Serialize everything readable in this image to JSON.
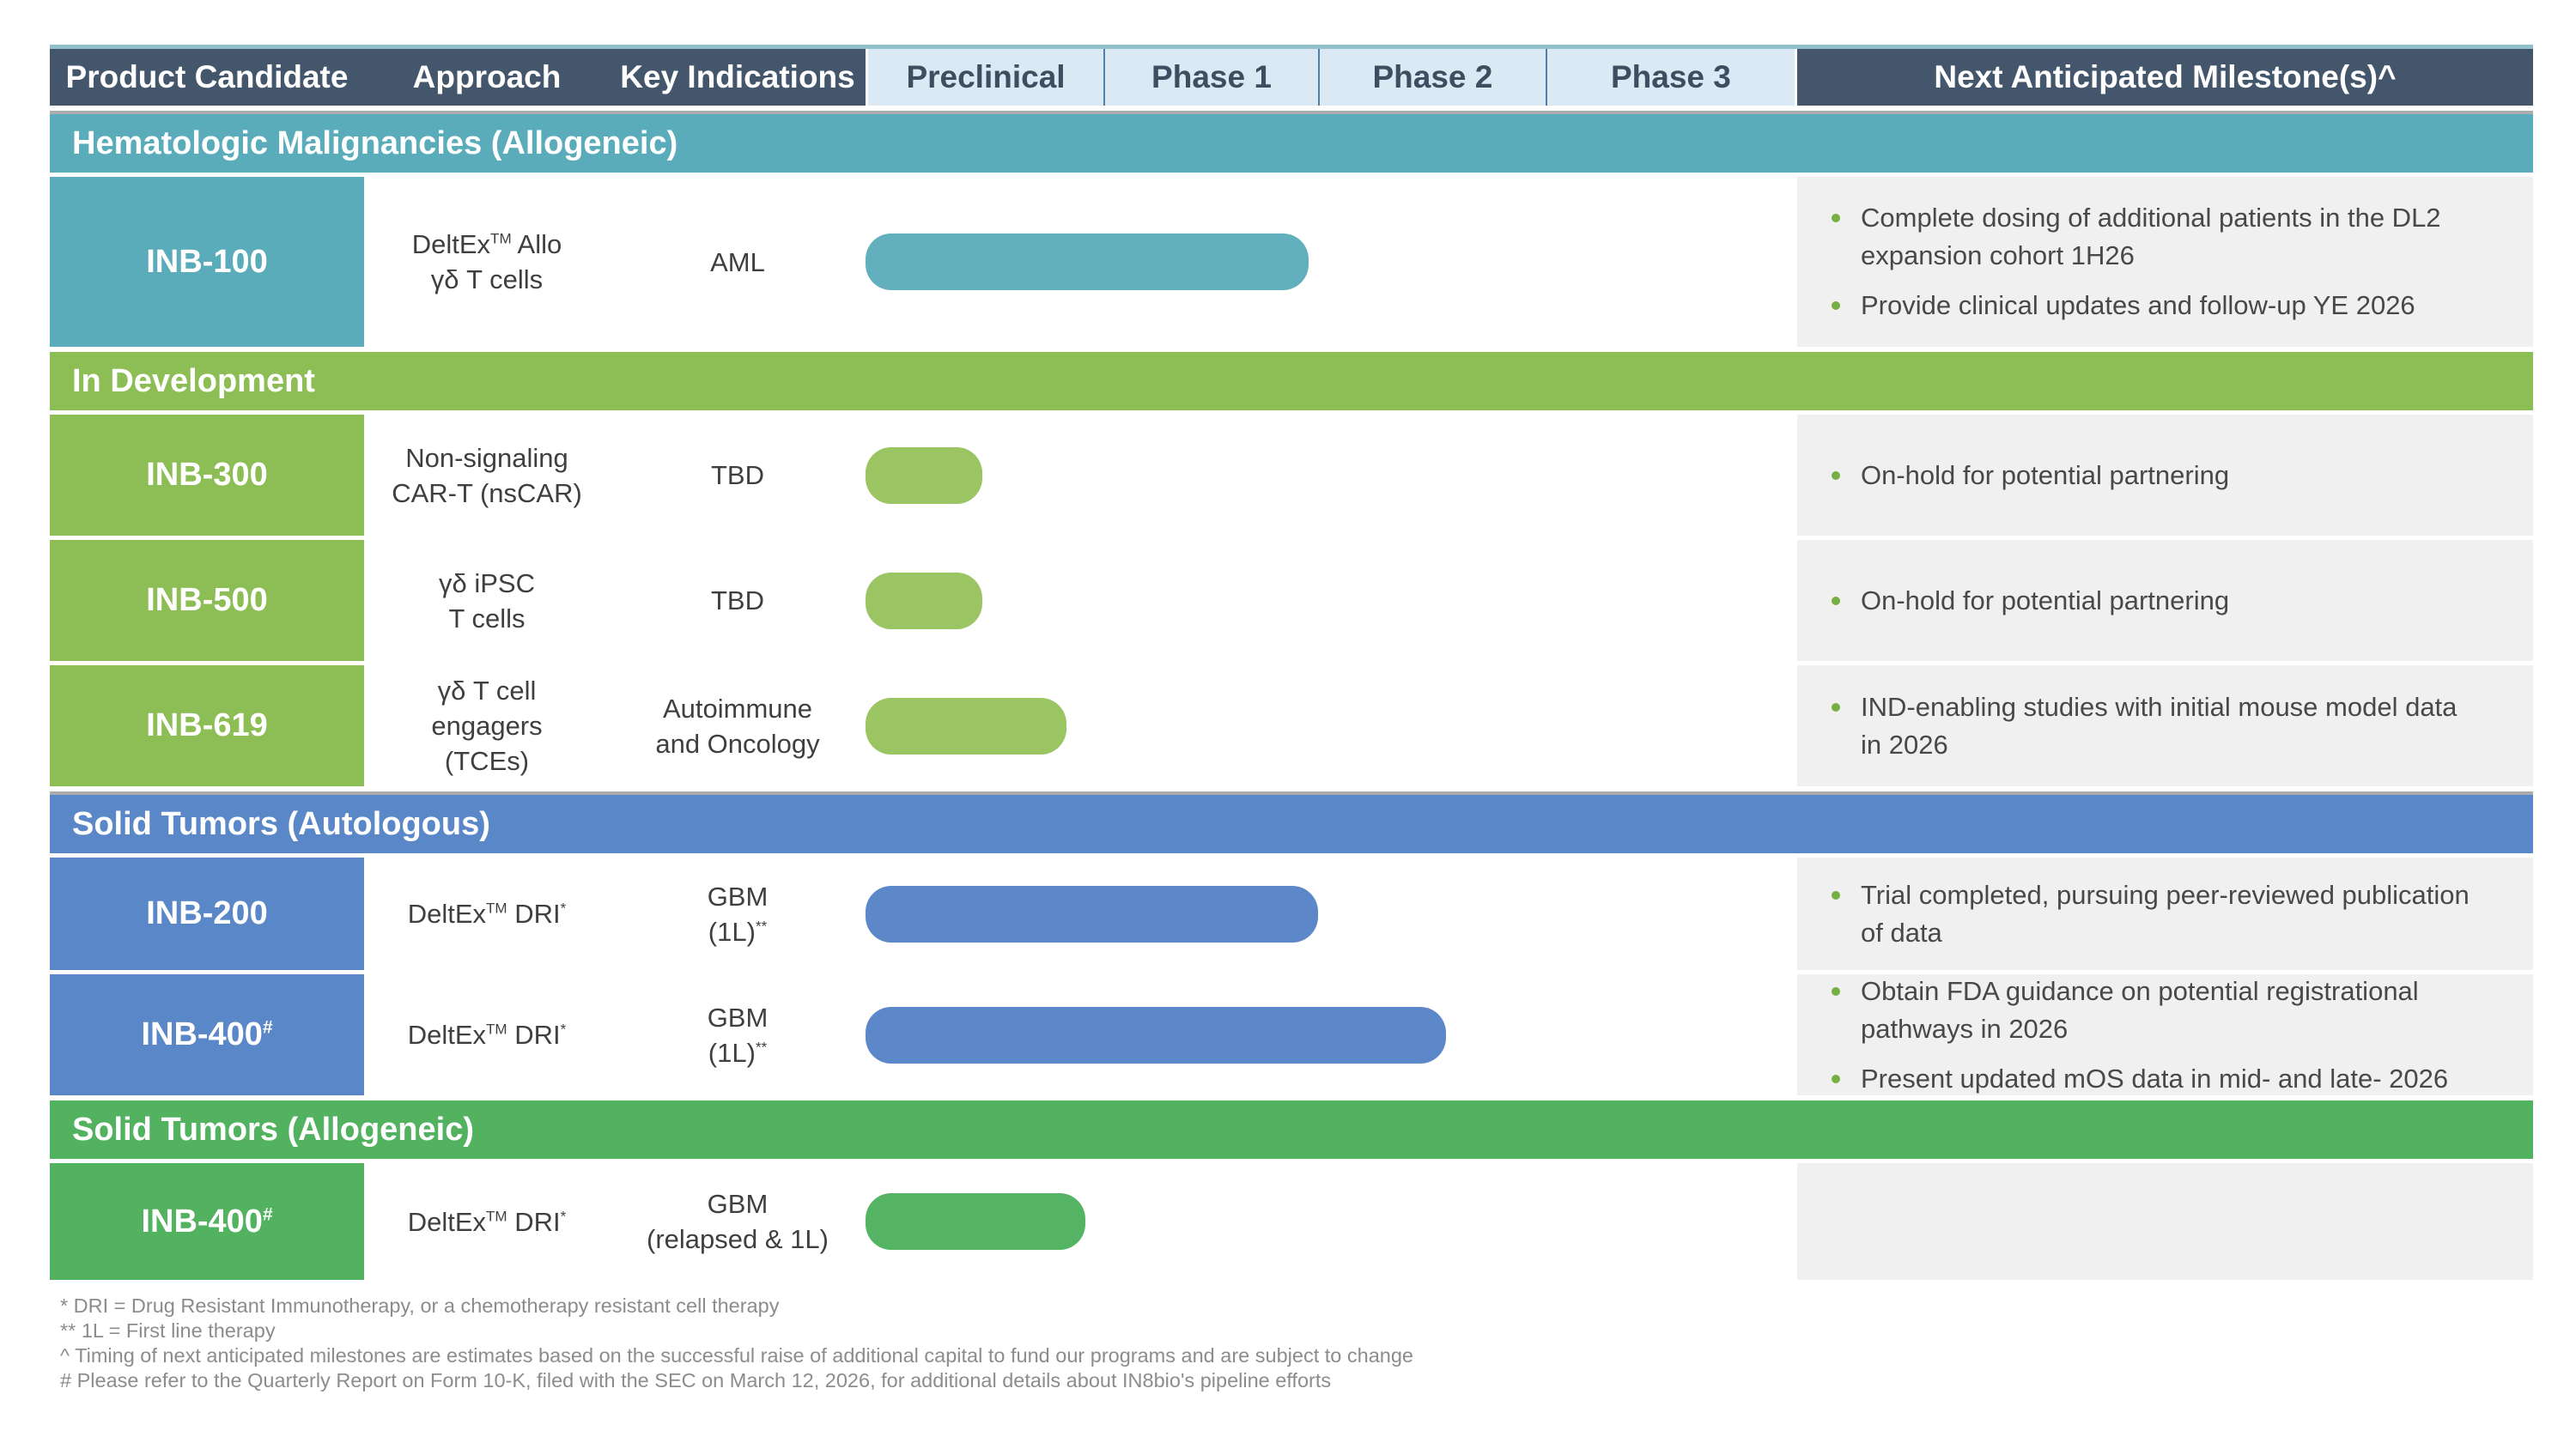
{
  "header": {
    "columns": [
      "Product Candidate",
      "Approach",
      "Key Indications"
    ],
    "phases": [
      "Preclinical",
      "Phase 1",
      "Phase 2",
      "Phase 3"
    ],
    "milestones_label": "Next Anticipated Milestone(s)^"
  },
  "colors": {
    "header_dark": "#44566B",
    "phase_cell_bg": "#DBE9F4",
    "phase_divider": "#4E7FAD",
    "teal": "#5AACBB",
    "teal_bar": "#62AFBD",
    "olive": "#8DBE55",
    "olive_bar": "#9BC463",
    "blue": "#5A87C8",
    "blue_bar": "#5C88C9",
    "green": "#52B25F",
    "green_bar": "#55B464",
    "milestone_panel_bg": "#F1F0F0",
    "bullet_green": "#76B043",
    "top_border_teal": "#8FC0CB",
    "gray_rule": "#ACACAC"
  },
  "sections": [
    {
      "title": "Hematologic Malignancies (Allogeneic)",
      "color": "#5AACBB",
      "bar_color": "#62AFBD",
      "rows": [
        {
          "candidate": "INB-100",
          "approach_lines": [
            "DeltEx{TM} Allo",
            "γδ T cells"
          ],
          "indication_lines": [
            "AML"
          ],
          "bar_start_pct": 0,
          "bar_end_pct": 47.6,
          "milestones": [
            "Complete dosing of additional patients in the DL2 expansion cohort 1H26",
            "Provide clinical updates and follow-up YE 2026"
          ]
        }
      ]
    },
    {
      "title": "In Development",
      "color": "#8DBE55",
      "bar_color": "#9BC463",
      "rows": [
        {
          "candidate": "INB-300",
          "approach_lines": [
            "Non-signaling",
            "CAR-T (nsCAR)"
          ],
          "indication_lines": [
            "TBD"
          ],
          "bar_start_pct": 0,
          "bar_end_pct": 12.5,
          "milestones": [
            "On-hold for potential partnering"
          ]
        },
        {
          "candidate": "INB-500",
          "approach_lines": [
            "γδ iPSC",
            "T cells"
          ],
          "indication_lines": [
            "TBD"
          ],
          "bar_start_pct": 0,
          "bar_end_pct": 12.5,
          "milestones": [
            "On-hold for potential partnering"
          ]
        },
        {
          "candidate": "INB-619",
          "approach_lines": [
            "γδ T cell",
            "engagers",
            "(TCEs)"
          ],
          "indication_lines": [
            "Autoimmune",
            "and Oncology"
          ],
          "bar_start_pct": 0,
          "bar_end_pct": 21.6,
          "milestones": [
            "IND-enabling studies with initial mouse model data in 2026"
          ]
        }
      ]
    },
    {
      "title": "Solid Tumors (Autologous)",
      "color": "#5A87C8",
      "bar_color": "#5C88C9",
      "rows": [
        {
          "candidate": "INB-200",
          "approach_lines": [
            "DeltEx{TM} DRI{*}"
          ],
          "indication_lines": [
            "GBM",
            "(1L){**}"
          ],
          "bar_start_pct": 0,
          "bar_end_pct": 48.6,
          "milestones": [
            "Trial completed, pursuing peer-reviewed publication of data"
          ]
        },
        {
          "candidate": "INB-400{#}",
          "approach_lines": [
            "DeltEx{TM} DRI{*}"
          ],
          "indication_lines": [
            "GBM",
            "(1L){**}"
          ],
          "bar_start_pct": 0,
          "bar_end_pct": 62.3,
          "milestones": [
            "Obtain FDA guidance on potential registrational pathways in 2026",
            "Present updated mOS data in mid- and late- 2026"
          ]
        }
      ]
    },
    {
      "title": "Solid Tumors (Allogeneic)",
      "color": "#52B25F",
      "bar_color": "#55B464",
      "rows": [
        {
          "candidate": "INB-400{#}",
          "approach_lines": [
            "DeltEx{TM} DRI{*}"
          ],
          "indication_lines": [
            "GBM",
            "(relapsed & 1L)"
          ],
          "bar_start_pct": 0,
          "bar_end_pct": 23.6,
          "milestones": []
        }
      ]
    }
  ],
  "footnotes": [
    "*  DRI = Drug Resistant Immunotherapy, or a chemotherapy resistant cell therapy",
    "** 1L = First line therapy",
    "^ Timing of next anticipated milestones are estimates based on the successful raise of additional capital to fund our programs and are subject to change",
    "# Please refer to the Quarterly Report on Form 10-K, filed with the SEC on March 12, 2026, for additional details about IN8bio's pipeline efforts"
  ]
}
